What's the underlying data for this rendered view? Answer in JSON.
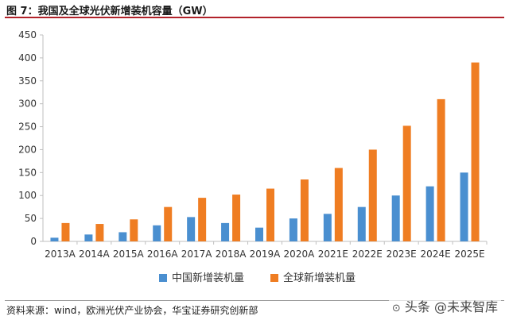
{
  "figure": {
    "title": "图 7：我国及全球光伏新增装机容量（GW）",
    "source": "资料来源：wind，欧洲光伏产业协会，华宝证券研究创新部",
    "watermark": "头条 @未来智库"
  },
  "colors": {
    "china": "#4a8fd0",
    "global": "#ef7d22",
    "axis": "#bfbfbf",
    "title_rule": "#b2222a"
  },
  "chart_data": {
    "type": "bar",
    "title": "",
    "xlabel": "",
    "ylabel": "",
    "ylim": [
      0,
      450
    ],
    "yticks": [
      0,
      50,
      100,
      150,
      200,
      250,
      300,
      350,
      400,
      450
    ],
    "grid": false,
    "legend_position": "bottom",
    "categories": [
      "2013A",
      "2014A",
      "2015A",
      "2016A",
      "2017A",
      "2018A",
      "2019A",
      "2020A",
      "2021E",
      "2022E",
      "2023E",
      "2024E",
      "2025E"
    ],
    "series": [
      {
        "name": "中国新增装机量",
        "color": "#4a8fd0",
        "values": [
          8,
          15,
          20,
          35,
          53,
          40,
          30,
          50,
          60,
          75,
          100,
          120,
          150
        ]
      },
      {
        "name": "全球新增装机量",
        "color": "#ef7d22",
        "values": [
          40,
          38,
          48,
          75,
          95,
          102,
          115,
          135,
          160,
          200,
          252,
          310,
          390
        ]
      }
    ]
  }
}
